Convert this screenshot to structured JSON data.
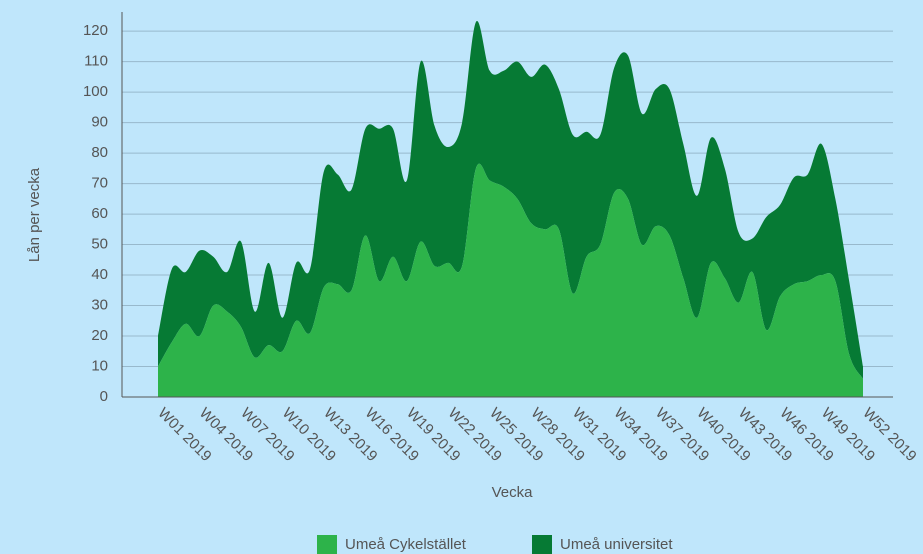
{
  "chart_data": {
    "type": "stacked_area",
    "xlabel": "Vecka",
    "ylabel": "Lån per vecka",
    "categories": [
      "W01 2019",
      null,
      null,
      "W04 2019",
      null,
      null,
      "W07 2019",
      null,
      null,
      "W10 2019",
      null,
      null,
      "W13 2019",
      null,
      null,
      "W16 2019",
      null,
      null,
      "W19 2019",
      null,
      null,
      "W22 2019",
      null,
      null,
      "W25 2019",
      null,
      null,
      "W28 2019",
      null,
      null,
      "W31 2019",
      null,
      null,
      "W34 2019",
      null,
      null,
      "W37 2019",
      null,
      null,
      "W40 2019",
      null,
      null,
      "W43 2019",
      null,
      null,
      "W46 2019",
      null,
      null,
      "W49 2019",
      null,
      null,
      "W52 2019"
    ],
    "series": [
      {
        "name": "Umeå Cykelstället",
        "color": "#2db34a",
        "values": [
          10,
          18,
          24,
          20,
          30,
          28,
          23,
          13,
          17,
          15,
          25,
          21,
          36,
          37,
          35,
          53,
          38,
          46,
          38,
          51,
          43,
          44,
          43,
          75,
          71,
          69,
          65,
          57,
          55,
          55,
          34,
          46,
          50,
          67,
          65,
          50,
          56,
          53,
          39,
          26,
          44,
          39,
          31,
          41,
          22,
          33,
          37,
          38,
          40,
          38,
          14,
          6
        ]
      },
      {
        "name": "Umeå universitet",
        "color": "#067a34",
        "values": [
          10,
          24,
          17,
          28,
          16,
          13,
          28,
          15,
          27,
          11,
          19,
          21,
          38,
          36,
          33,
          35,
          50,
          42,
          33,
          59,
          46,
          38,
          47,
          48,
          36,
          38,
          45,
          48,
          54,
          46,
          52,
          41,
          36,
          41,
          47,
          43,
          45,
          48,
          44,
          40,
          41,
          36,
          23,
          11,
          37,
          30,
          35,
          35,
          43,
          27,
          24,
          4
        ]
      }
    ],
    "ylim": [
      0,
      123
    ],
    "yticks": [
      0,
      10,
      20,
      30,
      40,
      50,
      60,
      70,
      80,
      90,
      100,
      110,
      120
    ],
    "grid": true,
    "legend": "bottom"
  }
}
